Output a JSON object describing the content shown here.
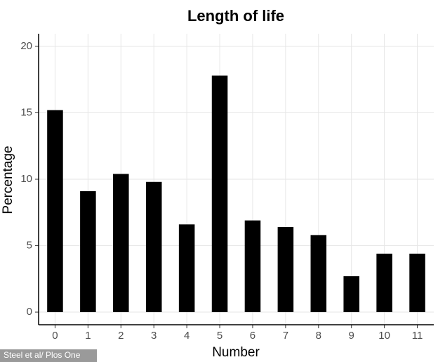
{
  "chart_data": {
    "type": "bar",
    "title": "Length of life",
    "x_label": "Number",
    "y_label": "Percentage",
    "categories": [
      "0",
      "1",
      "2",
      "3",
      "4",
      "5",
      "6",
      "7",
      "8",
      "9",
      "10",
      "11"
    ],
    "values": [
      15.2,
      9.1,
      10.4,
      9.8,
      6.6,
      17.8,
      6.9,
      6.4,
      5.8,
      2.7,
      4.4,
      4.4
    ],
    "color": "#000000",
    "ylim": [
      -0.95,
      20.95
    ],
    "yticks": [
      0,
      5,
      10,
      15,
      20
    ],
    "grid": true,
    "source": "Steel et al/ Plos One"
  }
}
